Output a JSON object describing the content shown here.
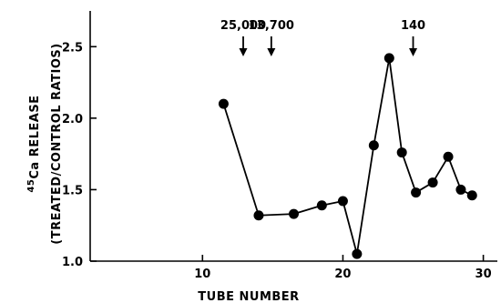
{
  "chart_data": {
    "type": "line",
    "xlabel": "TUBE NUMBER",
    "ylabel": {
      "line1_prefix": "45",
      "line1_main": "Ca RELEASE",
      "line2": "(TREATED/CONTROL RATIOS)"
    },
    "xlim": [
      2,
      31
    ],
    "ylim": [
      1.0,
      2.75
    ],
    "xticks": [
      10,
      20,
      30
    ],
    "yticks": [
      1.0,
      1.5,
      2.0,
      2.5
    ],
    "xtick_labels": [
      "10",
      "20",
      "30"
    ],
    "ytick_labels": [
      "1.0",
      "1.5",
      "2.0",
      "2.5"
    ],
    "grid": false,
    "series": [
      {
        "x": [
          11.5,
          14,
          16.5,
          18.5,
          20,
          21,
          22.2,
          23.3,
          24.2,
          25.2,
          26.4,
          27.5,
          28.4,
          29.2
        ],
        "y": [
          2.1,
          1.32,
          1.33,
          1.39,
          1.42,
          1.05,
          1.81,
          2.42,
          1.76,
          1.48,
          1.55,
          1.73,
          1.5,
          1.46
        ]
      }
    ],
    "annotations": [
      {
        "label": "25,000",
        "x": 12.9
      },
      {
        "label": "13,700",
        "x": 14.9
      },
      {
        "label": "140",
        "x": 25.0
      }
    ]
  }
}
